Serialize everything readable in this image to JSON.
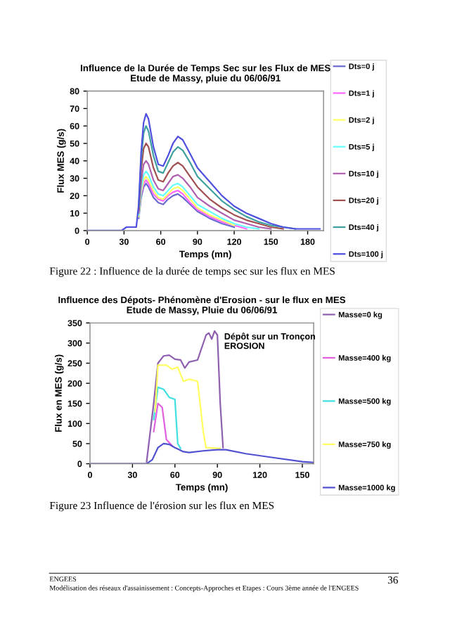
{
  "chart_data": [
    {
      "type": "line",
      "title": "Influence de la Durée de Temps Sec sur les Flux de MES\nEtude de Massy, pluie du 06/06/91",
      "xlabel": "Temps (mn)",
      "ylabel": "Flux MES (g/s)",
      "x": [
        0,
        28,
        32,
        40,
        42,
        44,
        46,
        48,
        50,
        54,
        58,
        62,
        66,
        70,
        74,
        78,
        84,
        90,
        100,
        110,
        120,
        130,
        140,
        150,
        160,
        170,
        180,
        190
      ],
      "series": [
        {
          "name": "Dts=0 j",
          "color": "#6a6ad0",
          "values": [
            null,
            null,
            null,
            null,
            7,
            19,
            25,
            27,
            25,
            19,
            16,
            15,
            18,
            20,
            21,
            19,
            15,
            11,
            7,
            4,
            2,
            null,
            null,
            null,
            null,
            null,
            null,
            null
          ]
        },
        {
          "name": "Dts=1 j",
          "color": "#ff66ff",
          "values": [
            null,
            null,
            null,
            null,
            null,
            21,
            27,
            29,
            27,
            21,
            18,
            17,
            20,
            22,
            23,
            21,
            16,
            12,
            8,
            5,
            3,
            1,
            null,
            null,
            null,
            null,
            null,
            null
          ]
        },
        {
          "name": "Dts=2 j",
          "color": "#ffff66",
          "values": [
            null,
            null,
            null,
            null,
            8,
            22,
            29,
            31,
            29,
            23,
            19,
            18,
            21,
            24,
            25,
            23,
            18,
            13,
            9,
            6,
            3,
            null,
            null,
            null,
            null,
            null,
            null,
            null
          ]
        },
        {
          "name": "Dts=5 j",
          "color": "#66ffff",
          "values": [
            null,
            null,
            null,
            null,
            9,
            24,
            32,
            34,
            32,
            25,
            21,
            20,
            23,
            26,
            27,
            25,
            20,
            15,
            11,
            7,
            4,
            2,
            1,
            null,
            null,
            null,
            null,
            null
          ]
        },
        {
          "name": "Dts=10 j",
          "color": "#b060b0",
          "values": [
            null,
            null,
            null,
            null,
            10,
            28,
            38,
            40,
            38,
            29,
            24,
            23,
            27,
            31,
            32,
            30,
            25,
            19,
            14,
            10,
            6,
            4,
            2,
            1,
            null,
            null,
            null,
            null
          ]
        },
        {
          "name": "Dts=20 j",
          "color": "#a05050",
          "values": [
            null,
            null,
            null,
            null,
            12,
            35,
            47,
            50,
            48,
            36,
            29,
            28,
            33,
            37,
            39,
            37,
            31,
            25,
            18,
            13,
            9,
            6,
            4,
            2,
            1,
            null,
            null,
            null
          ]
        },
        {
          "name": "Dts=40 j",
          "color": "#40a0a0",
          "values": [
            null,
            null,
            null,
            null,
            14,
            41,
            56,
            60,
            57,
            43,
            34,
            33,
            39,
            45,
            48,
            46,
            39,
            31,
            24,
            17,
            12,
            8,
            5,
            3,
            2,
            1,
            null,
            null
          ]
        },
        {
          "name": "Dts=100 j",
          "color": "#5050e0",
          "values": [
            0,
            0,
            2,
            2,
            15,
            45,
            62,
            67,
            64,
            48,
            38,
            37,
            43,
            50,
            54,
            52,
            44,
            36,
            28,
            20,
            14,
            10,
            7,
            4,
            2,
            1,
            1,
            1
          ]
        }
      ],
      "xlim": [
        0,
        193
      ],
      "xticks": [
        0,
        30,
        60,
        90,
        120,
        150,
        180
      ],
      "ylim": [
        0,
        80
      ],
      "yticks": [
        0,
        10,
        20,
        30,
        40,
        50,
        60,
        70,
        80
      ],
      "grid": false,
      "legend": "right",
      "marker": "none",
      "line_style": "solid",
      "annotations": [
        "Figure 22 : Influence de la durée de temps sec sur les flux en MES"
      ]
    },
    {
      "type": "line",
      "title": "Influence des Dépots- Phénomène d'Erosion - sur le flux en MES\nEtude de Massy, Pluie du 06/06/91",
      "xlabel": "Temps (mn)",
      "ylabel": "Flux en MES (g/s)",
      "series": [
        {
          "name": "Masse=0 kg",
          "color": "#9060b0",
          "x": [
            40,
            45,
            48,
            52,
            56,
            60,
            64,
            67,
            70,
            76,
            82,
            84,
            86,
            88,
            90,
            92,
            94
          ],
          "values": [
            5,
            150,
            250,
            268,
            270,
            260,
            258,
            238,
            253,
            258,
            320,
            325,
            310,
            330,
            320,
            150,
            40
          ]
        },
        {
          "name": "Masse=400 kg",
          "color": "#e060e0",
          "x": [
            45,
            48,
            51,
            54,
            58
          ],
          "values": [
            80,
            150,
            140,
            60,
            45
          ]
        },
        {
          "name": "Masse=500 kg",
          "color": "#40e0e0",
          "x": [
            45,
            48,
            52,
            56,
            60,
            62,
            64
          ],
          "values": [
            110,
            190,
            185,
            165,
            160,
            50,
            38
          ]
        },
        {
          "name": "Masse=750 kg",
          "color": "#ffff60",
          "x": [
            46,
            48,
            54,
            58,
            62,
            66,
            70,
            76,
            80,
            82,
            92
          ],
          "values": [
            130,
            245,
            245,
            235,
            240,
            205,
            210,
            205,
            80,
            40,
            38
          ]
        },
        {
          "name": "Masse=1000 kg",
          "color": "#5050d0",
          "x": [
            0,
            30,
            40,
            44,
            48,
            52,
            56,
            60,
            66,
            70,
            80,
            90,
            96,
            110,
            130,
            150,
            158
          ],
          "values": [
            0,
            0,
            0,
            10,
            40,
            50,
            48,
            40,
            30,
            28,
            32,
            35,
            35,
            25,
            15,
            5,
            3
          ]
        }
      ],
      "xlim": [
        0,
        158
      ],
      "xticks": [
        0,
        30,
        60,
        90,
        120,
        150
      ],
      "ylim": [
        0,
        350
      ],
      "yticks": [
        0,
        50,
        100,
        150,
        200,
        250,
        300,
        350
      ],
      "grid": false,
      "legend": "right",
      "marker": "none",
      "line_style": "solid",
      "annotations": [
        "Figure 23 Influence de l'érosion sur les flux en MES",
        "Dépôt sur un Tronçon\nEROSION",
        "ENGEES",
        "Modélisation des réseaux d'assainissement : Concepts-Approches et Etapes : Cours 3ème année de l'ENGEES",
        "36"
      ]
    }
  ]
}
